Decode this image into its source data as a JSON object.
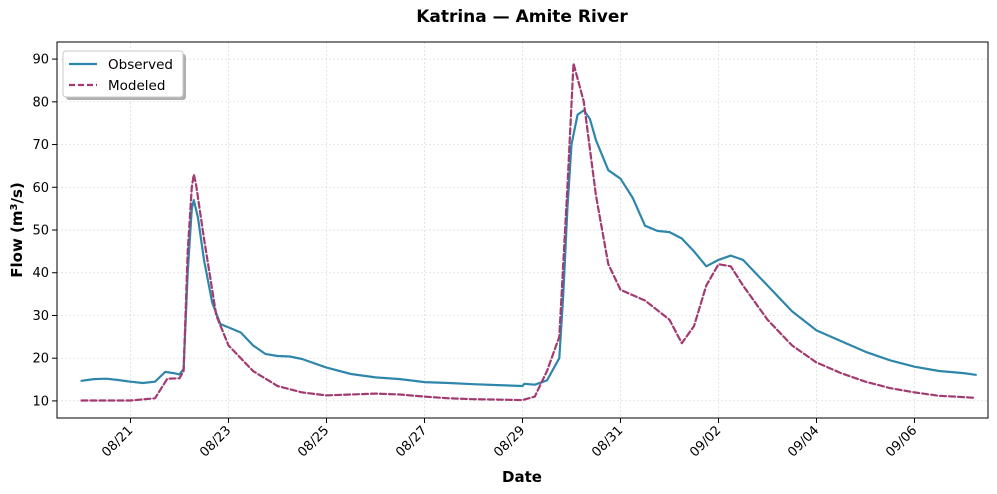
{
  "chart_data": {
    "type": "line",
    "title": "Katrina — Amite River",
    "xlabel": "Date",
    "ylabel": "Flow (m³/s)",
    "x_range": [
      "2005-08-19T12:00",
      "2005-09-07T12:00"
    ],
    "ylim": [
      6,
      94
    ],
    "y_ticks": [
      10,
      20,
      30,
      40,
      50,
      60,
      70,
      80,
      90
    ],
    "x_ticks": [
      {
        "date": "2005-08-21",
        "label": "08/21"
      },
      {
        "date": "2005-08-23",
        "label": "08/23"
      },
      {
        "date": "2005-08-25",
        "label": "08/25"
      },
      {
        "date": "2005-08-27",
        "label": "08/27"
      },
      {
        "date": "2005-08-29",
        "label": "08/29"
      },
      {
        "date": "2005-08-31",
        "label": "08/31"
      },
      {
        "date": "2005-09-02",
        "label": "09/02"
      },
      {
        "date": "2005-09-04",
        "label": "09/04"
      },
      {
        "date": "2005-09-06",
        "label": "09/06"
      }
    ],
    "grid": true,
    "legend_position": "top-left",
    "series": [
      {
        "name": "Observed",
        "color": "#2e86ab",
        "dash": "solid",
        "points": [
          [
            "2005-08-20T00:00",
            14.7
          ],
          [
            "2005-08-20T06:00",
            15.1
          ],
          [
            "2005-08-20T12:00",
            15.2
          ],
          [
            "2005-08-20T18:00",
            14.9
          ],
          [
            "2005-08-21T00:00",
            14.5
          ],
          [
            "2005-08-21T06:00",
            14.2
          ],
          [
            "2005-08-21T12:00",
            14.5
          ],
          [
            "2005-08-21T17:00",
            16.8
          ],
          [
            "2005-08-21T21:00",
            16.5
          ],
          [
            "2005-08-22T00:00",
            16.2
          ],
          [
            "2005-08-22T02:00",
            17.5
          ],
          [
            "2005-08-22T04:00",
            40.0
          ],
          [
            "2005-08-22T06:00",
            55.0
          ],
          [
            "2005-08-22T07:00",
            57.0
          ],
          [
            "2005-08-22T09:00",
            53.0
          ],
          [
            "2005-08-22T12:00",
            43.0
          ],
          [
            "2005-08-22T16:00",
            33.0
          ],
          [
            "2005-08-22T20:00",
            28.0
          ],
          [
            "2005-08-23T00:00",
            27.2
          ],
          [
            "2005-08-23T06:00",
            26.0
          ],
          [
            "2005-08-23T12:00",
            23.0
          ],
          [
            "2005-08-23T18:00",
            21.0
          ],
          [
            "2005-08-24T00:00",
            20.5
          ],
          [
            "2005-08-24T06:00",
            20.4
          ],
          [
            "2005-08-24T12:00",
            19.8
          ],
          [
            "2005-08-25T00:00",
            17.8
          ],
          [
            "2005-08-25T12:00",
            16.3
          ],
          [
            "2005-08-26T00:00",
            15.5
          ],
          [
            "2005-08-26T12:00",
            15.1
          ],
          [
            "2005-08-27T00:00",
            14.4
          ],
          [
            "2005-08-27T12:00",
            14.2
          ],
          [
            "2005-08-28T00:00",
            13.9
          ],
          [
            "2005-08-28T12:00",
            13.7
          ],
          [
            "2005-08-29T00:00",
            13.5
          ],
          [
            "2005-08-29T01:00",
            14.0
          ],
          [
            "2005-08-29T06:00",
            13.8
          ],
          [
            "2005-08-29T12:00",
            14.8
          ],
          [
            "2005-08-29T18:00",
            20.0
          ],
          [
            "2005-08-29T20:00",
            35.0
          ],
          [
            "2005-08-29T22:00",
            55.0
          ],
          [
            "2005-08-30T00:00",
            70.0
          ],
          [
            "2005-08-30T03:00",
            77.0
          ],
          [
            "2005-08-30T06:00",
            78.0
          ],
          [
            "2005-08-30T09:00",
            76.0
          ],
          [
            "2005-08-30T12:00",
            71.0
          ],
          [
            "2005-08-30T18:00",
            64.0
          ],
          [
            "2005-08-31T00:00",
            62.0
          ],
          [
            "2005-08-31T06:00",
            57.5
          ],
          [
            "2005-08-31T12:00",
            51.0
          ],
          [
            "2005-08-31T18:00",
            49.8
          ],
          [
            "2005-09-01T00:00",
            49.5
          ],
          [
            "2005-09-01T06:00",
            48.0
          ],
          [
            "2005-09-01T12:00",
            45.0
          ],
          [
            "2005-09-01T18:00",
            41.5
          ],
          [
            "2005-09-02T00:00",
            43.0
          ],
          [
            "2005-09-02T06:00",
            44.0
          ],
          [
            "2005-09-02T12:00",
            43.0
          ],
          [
            "2005-09-03T00:00",
            37.0
          ],
          [
            "2005-09-03T12:00",
            31.0
          ],
          [
            "2005-09-04T00:00",
            26.5
          ],
          [
            "2005-09-04T12:00",
            24.0
          ],
          [
            "2005-09-05T00:00",
            21.5
          ],
          [
            "2005-09-05T12:00",
            19.5
          ],
          [
            "2005-09-06T00:00",
            18.0
          ],
          [
            "2005-09-06T12:00",
            17.0
          ],
          [
            "2005-09-07T00:00",
            16.5
          ],
          [
            "2005-09-07T06:00",
            16.1
          ]
        ]
      },
      {
        "name": "Modeled",
        "color": "#a23b72",
        "dash": "dashed",
        "points": [
          [
            "2005-08-20T00:00",
            10.1
          ],
          [
            "2005-08-20T12:00",
            10.1
          ],
          [
            "2005-08-21T00:00",
            10.1
          ],
          [
            "2005-08-21T12:00",
            10.6
          ],
          [
            "2005-08-21T18:00",
            15.2
          ],
          [
            "2005-08-22T00:00",
            15.3
          ],
          [
            "2005-08-22T02:00",
            17.0
          ],
          [
            "2005-08-22T04:00",
            45.0
          ],
          [
            "2005-08-22T06:00",
            60.0
          ],
          [
            "2005-08-22T07:00",
            63.0
          ],
          [
            "2005-08-22T08:00",
            61.0
          ],
          [
            "2005-08-22T12:00",
            48.0
          ],
          [
            "2005-08-22T18:00",
            30.0
          ],
          [
            "2005-08-23T00:00",
            23.0
          ],
          [
            "2005-08-23T12:00",
            17.0
          ],
          [
            "2005-08-24T00:00",
            13.5
          ],
          [
            "2005-08-24T12:00",
            12.0
          ],
          [
            "2005-08-25T00:00",
            11.3
          ],
          [
            "2005-08-25T12:00",
            11.5
          ],
          [
            "2005-08-26T00:00",
            11.7
          ],
          [
            "2005-08-26T12:00",
            11.5
          ],
          [
            "2005-08-27T00:00",
            11.0
          ],
          [
            "2005-08-27T12:00",
            10.6
          ],
          [
            "2005-08-28T00:00",
            10.4
          ],
          [
            "2005-08-28T12:00",
            10.3
          ],
          [
            "2005-08-29T00:00",
            10.2
          ],
          [
            "2005-08-29T06:00",
            11.0
          ],
          [
            "2005-08-29T12:00",
            17.0
          ],
          [
            "2005-08-29T18:00",
            25.0
          ],
          [
            "2005-08-29T22:00",
            60.0
          ],
          [
            "2005-08-30T01:00",
            89.0
          ],
          [
            "2005-08-30T06:00",
            80.0
          ],
          [
            "2005-08-30T12:00",
            58.0
          ],
          [
            "2005-08-30T18:00",
            42.0
          ],
          [
            "2005-08-31T00:00",
            36.0
          ],
          [
            "2005-08-31T12:00",
            33.5
          ],
          [
            "2005-09-01T00:00",
            29.0
          ],
          [
            "2005-09-01T06:00",
            23.5
          ],
          [
            "2005-09-01T12:00",
            27.5
          ],
          [
            "2005-09-01T18:00",
            37.0
          ],
          [
            "2005-09-02T00:00",
            42.0
          ],
          [
            "2005-09-02T06:00",
            41.5
          ],
          [
            "2005-09-02T12:00",
            37.0
          ],
          [
            "2005-09-03T00:00",
            29.0
          ],
          [
            "2005-09-03T12:00",
            23.0
          ],
          [
            "2005-09-04T00:00",
            19.0
          ],
          [
            "2005-09-04T12:00",
            16.5
          ],
          [
            "2005-09-05T00:00",
            14.5
          ],
          [
            "2005-09-05T12:00",
            13.0
          ],
          [
            "2005-09-06T00:00",
            12.0
          ],
          [
            "2005-09-06T12:00",
            11.2
          ],
          [
            "2005-09-07T00:00",
            10.9
          ],
          [
            "2005-09-07T06:00",
            10.7
          ]
        ]
      }
    ]
  }
}
